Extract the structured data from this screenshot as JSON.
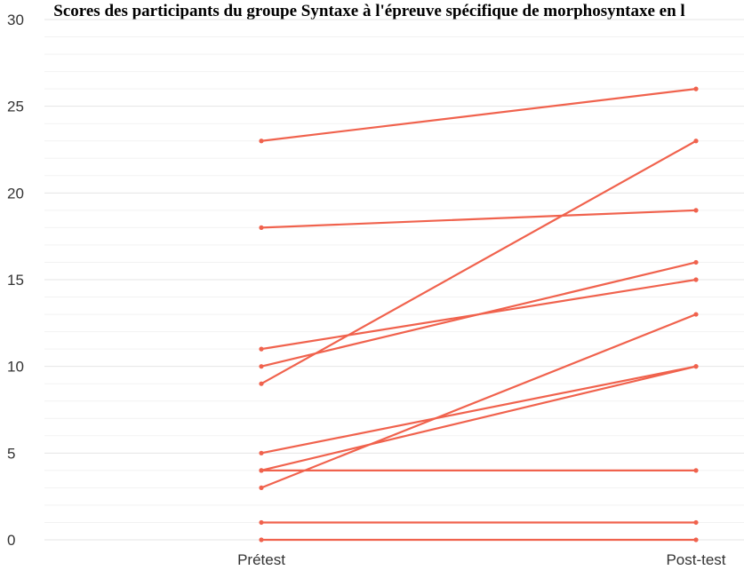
{
  "chart_data": {
    "type": "line",
    "title": "Scores des participants du groupe Syntaxe à l'épreuve spécifique de morphosyntaxe en l",
    "categories": [
      "Prétest",
      "Post-test"
    ],
    "ylim": [
      0,
      30
    ],
    "yticks": [
      0,
      5,
      10,
      15,
      20,
      25,
      30
    ],
    "grid": true,
    "series": [
      {
        "values": [
          23,
          26
        ]
      },
      {
        "values": [
          18,
          19
        ]
      },
      {
        "values": [
          11,
          15
        ]
      },
      {
        "values": [
          10,
          16
        ]
      },
      {
        "values": [
          9,
          23
        ]
      },
      {
        "values": [
          5,
          10
        ]
      },
      {
        "values": [
          4,
          10
        ]
      },
      {
        "values": [
          4,
          4
        ]
      },
      {
        "values": [
          3,
          13
        ]
      },
      {
        "values": [
          1,
          1
        ]
      },
      {
        "values": [
          0,
          0
        ]
      }
    ],
    "line_color": "#f0624d",
    "grid_major_color": "#e4e4e4",
    "grid_minor_color": "#f2f2f2"
  }
}
